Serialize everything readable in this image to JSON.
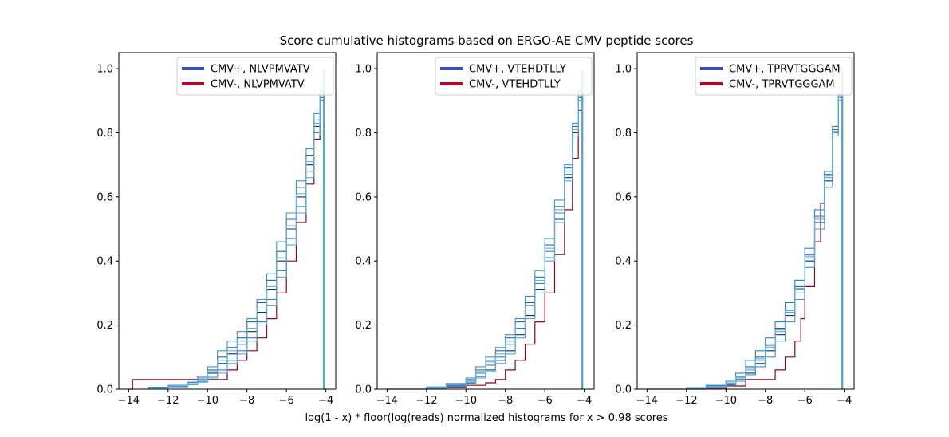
{
  "figure": {
    "title": "Score cumulative histograms based on ERGO-AE CMV peptide scores",
    "xlabel": "log(1 - x) * floor(log(reads) normalized histograms for x > 0.98 scores"
  },
  "colors": {
    "cmv_pos_legend": "#3b4cc0",
    "cmv_neg_legend": "#b40426",
    "cmv_pos_lines": [
      "#08306b",
      "#1f66b1",
      "#2f7fc1",
      "#4292c6",
      "#5aa5d6",
      "#6baed6"
    ],
    "cmv_neg_line": "#7f0b1c"
  },
  "chart_data": [
    {
      "type": "step",
      "panel": "NLVPMVATV",
      "xlim": [
        -14.5,
        -3.5
      ],
      "ylim": [
        0,
        1.05
      ],
      "xticks": [
        -14,
        -12,
        -10,
        -8,
        -6,
        -4
      ],
      "xtick_labels": [
        "−14",
        "−12",
        "−10",
        "−8",
        "−6",
        "−4"
      ],
      "yticks": [
        0,
        0.2,
        0.4,
        0.6,
        0.8,
        1.0
      ],
      "ytick_labels": [
        "0.0",
        "0.2",
        "0.4",
        "0.6",
        "0.8",
        "1.0"
      ],
      "legend": [
        "CMV+, NLVPMVATV",
        "CMV-, NLVPMVATV"
      ],
      "legend_loc": "upper right",
      "series": [
        {
          "group": "CMV-",
          "x": [
            -14,
            -13.8,
            -10.5,
            -9,
            -8.5,
            -8,
            -7.5,
            -7,
            -6.5,
            -6,
            -5.5,
            -5,
            -4.6,
            -4.3,
            -4.1
          ],
          "y": [
            0,
            0.03,
            0.03,
            0.06,
            0.09,
            0.12,
            0.16,
            0.22,
            0.3,
            0.4,
            0.52,
            0.64,
            0.78,
            0.9,
            1.0
          ]
        },
        {
          "group": "CMV+",
          "x": [
            -14,
            -13,
            -12,
            -11,
            -10.5,
            -10,
            -9.5,
            -9,
            -8.5,
            -8,
            -7.5,
            -7,
            -6.5,
            -6,
            -5.5,
            -5,
            -4.6,
            -4.3,
            -4.1
          ],
          "y": [
            0,
            0.005,
            0.01,
            0.02,
            0.03,
            0.05,
            0.08,
            0.11,
            0.14,
            0.18,
            0.24,
            0.31,
            0.4,
            0.5,
            0.6,
            0.7,
            0.82,
            0.92,
            1.0
          ]
        },
        {
          "group": "CMV+",
          "x": [
            -14,
            -13,
            -12,
            -11,
            -10.5,
            -10,
            -9.5,
            -9,
            -8.5,
            -8,
            -7.5,
            -7,
            -6.5,
            -6,
            -5.5,
            -5,
            -4.6,
            -4.3,
            -4.1
          ],
          "y": [
            0,
            0.006,
            0.012,
            0.022,
            0.04,
            0.06,
            0.1,
            0.13,
            0.16,
            0.21,
            0.27,
            0.34,
            0.43,
            0.53,
            0.63,
            0.73,
            0.84,
            0.93,
            1.0
          ]
        },
        {
          "group": "CMV+",
          "x": [
            -14,
            -13,
            -12,
            -11,
            -10.5,
            -10,
            -9.5,
            -9,
            -8.5,
            -8,
            -7.5,
            -7,
            -6.5,
            -6,
            -5.5,
            -5,
            -4.6,
            -4.3,
            -4.1
          ],
          "y": [
            0,
            0.004,
            0.008,
            0.016,
            0.025,
            0.04,
            0.06,
            0.09,
            0.12,
            0.16,
            0.21,
            0.28,
            0.37,
            0.47,
            0.57,
            0.68,
            0.8,
            0.91,
            1.0
          ]
        },
        {
          "group": "CMV+",
          "x": [
            -14,
            -13,
            -12,
            -11,
            -10.5,
            -10,
            -9.5,
            -9,
            -8.5,
            -8,
            -7.5,
            -7,
            -6.5,
            -6,
            -5.5,
            -5,
            -4.6,
            -4.3,
            -4.1
          ],
          "y": [
            0,
            0.005,
            0.01,
            0.02,
            0.035,
            0.07,
            0.12,
            0.15,
            0.18,
            0.22,
            0.28,
            0.36,
            0.46,
            0.55,
            0.65,
            0.75,
            0.86,
            0.94,
            1.0
          ]
        },
        {
          "group": "CMV+",
          "x": [
            -14,
            -13,
            -12,
            -11,
            -10.5,
            -10,
            -9.5,
            -9,
            -8.5,
            -8,
            -7.5,
            -7,
            -6.5,
            -6,
            -5.5,
            -5,
            -4.6,
            -4.3,
            -4.1
          ],
          "y": [
            0,
            0.003,
            0.007,
            0.014,
            0.022,
            0.035,
            0.05,
            0.08,
            0.11,
            0.15,
            0.2,
            0.26,
            0.35,
            0.45,
            0.55,
            0.66,
            0.79,
            0.9,
            1.0
          ]
        },
        {
          "group": "CMV+",
          "x": [
            -14,
            -13,
            -12,
            -11,
            -10.5,
            -10,
            -9.5,
            -9,
            -8.5,
            -8,
            -7.5,
            -7,
            -6.5,
            -6,
            -5.5,
            -5,
            -4.6,
            -4.3,
            -4.1
          ],
          "y": [
            0,
            0.005,
            0.011,
            0.02,
            0.03,
            0.055,
            0.09,
            0.12,
            0.15,
            0.19,
            0.25,
            0.32,
            0.41,
            0.51,
            0.61,
            0.71,
            0.83,
            0.92,
            1.0
          ]
        }
      ]
    },
    {
      "type": "step",
      "panel": "VTEHDTLLY",
      "xlim": [
        -14.5,
        -3.5
      ],
      "ylim": [
        0,
        1.05
      ],
      "xticks": [
        -14,
        -12,
        -10,
        -8,
        -6,
        -4
      ],
      "xtick_labels": [
        "−14",
        "−12",
        "−10",
        "−8",
        "−6",
        "−4"
      ],
      "yticks": [
        0,
        0.2,
        0.4,
        0.6,
        0.8,
        1.0
      ],
      "ytick_labels": [
        "0.0",
        "0.2",
        "0.4",
        "0.6",
        "0.8",
        "1.0"
      ],
      "legend": [
        "CMV+, VTEHDTLLY",
        "CMV-, VTEHDTLLY"
      ],
      "legend_loc": "upper right",
      "series": [
        {
          "group": "CMV-",
          "x": [
            -14,
            -12,
            -11,
            -10,
            -9,
            -8.5,
            -8,
            -7.5,
            -7,
            -6.5,
            -6,
            -5.5,
            -5,
            -4.6,
            -4.3,
            -4.1
          ],
          "y": [
            0,
            0.003,
            0.006,
            0.012,
            0.02,
            0.03,
            0.06,
            0.09,
            0.14,
            0.21,
            0.3,
            0.42,
            0.56,
            0.72,
            0.87,
            1.0
          ]
        },
        {
          "group": "CMV+",
          "x": [
            -14,
            -12,
            -11,
            -10,
            -9.5,
            -9,
            -8.5,
            -8,
            -7.5,
            -7,
            -6.5,
            -6,
            -5.5,
            -5,
            -4.6,
            -4.3,
            -4.1
          ],
          "y": [
            0,
            0.004,
            0.01,
            0.02,
            0.04,
            0.06,
            0.09,
            0.12,
            0.17,
            0.23,
            0.31,
            0.41,
            0.53,
            0.66,
            0.8,
            0.91,
            1.0
          ]
        },
        {
          "group": "CMV+",
          "x": [
            -14,
            -12,
            -11,
            -10,
            -9.5,
            -9,
            -8.5,
            -8,
            -7.5,
            -7,
            -6.5,
            -6,
            -5.5,
            -5,
            -4.6,
            -4.3,
            -4.1
          ],
          "y": [
            0,
            0.006,
            0.015,
            0.03,
            0.06,
            0.09,
            0.12,
            0.16,
            0.21,
            0.27,
            0.35,
            0.45,
            0.57,
            0.69,
            0.82,
            0.92,
            1.0
          ]
        },
        {
          "group": "CMV+",
          "x": [
            -14,
            -12,
            -11,
            -10,
            -9.5,
            -9,
            -8.5,
            -8,
            -7.5,
            -7,
            -6.5,
            -6,
            -5.5,
            -5,
            -4.6,
            -4.3,
            -4.1
          ],
          "y": [
            0,
            0.005,
            0.012,
            0.025,
            0.05,
            0.075,
            0.1,
            0.14,
            0.19,
            0.25,
            0.33,
            0.43,
            0.55,
            0.67,
            0.81,
            0.91,
            1.0
          ]
        },
        {
          "group": "CMV+",
          "x": [
            -14,
            -12,
            -11,
            -10,
            -9.5,
            -9,
            -8.5,
            -8,
            -7.5,
            -7,
            -6.5,
            -6,
            -5.5,
            -5,
            -4.6,
            -4.3,
            -4.1
          ],
          "y": [
            0,
            0.007,
            0.018,
            0.035,
            0.07,
            0.1,
            0.13,
            0.17,
            0.22,
            0.29,
            0.37,
            0.47,
            0.59,
            0.7,
            0.83,
            0.93,
            1.0
          ]
        },
        {
          "group": "CMV+",
          "x": [
            -14,
            -12,
            -11,
            -10,
            -9.5,
            -9,
            -8.5,
            -8,
            -7.5,
            -7,
            -6.5,
            -6,
            -5.5,
            -5,
            -4.6,
            -4.3,
            -4.1
          ],
          "y": [
            0,
            0.003,
            0.008,
            0.018,
            0.035,
            0.055,
            0.08,
            0.11,
            0.16,
            0.22,
            0.3,
            0.4,
            0.52,
            0.65,
            0.79,
            0.9,
            1.0
          ]
        },
        {
          "group": "CMV+",
          "x": [
            -14,
            -12,
            -11,
            -10,
            -9.5,
            -9,
            -8.5,
            -8,
            -7.5,
            -7,
            -6.5,
            -6,
            -5.5,
            -5,
            -4.6,
            -4.3,
            -4.1
          ],
          "y": [
            0,
            0.005,
            0.013,
            0.028,
            0.055,
            0.085,
            0.11,
            0.15,
            0.2,
            0.26,
            0.34,
            0.44,
            0.56,
            0.68,
            0.81,
            0.92,
            1.0
          ]
        }
      ]
    },
    {
      "type": "step",
      "panel": "TPRVTGGGAM",
      "xlim": [
        -14.5,
        -3.5
      ],
      "ylim": [
        0,
        1.05
      ],
      "xticks": [
        -14,
        -12,
        -10,
        -8,
        -6,
        -4
      ],
      "xtick_labels": [
        "−14",
        "−12",
        "−10",
        "−8",
        "−6",
        "−4"
      ],
      "yticks": [
        0,
        0.2,
        0.4,
        0.6,
        0.8,
        1.0
      ],
      "ytick_labels": [
        "0.0",
        "0.2",
        "0.4",
        "0.6",
        "0.8",
        "1.0"
      ],
      "legend": [
        "CMV+, TPRVTGGGAM",
        "CMV-, TPRVTGGGAM"
      ],
      "legend_loc": "upper right",
      "series": [
        {
          "group": "CMV-",
          "x": [
            -14,
            -11,
            -10,
            -9,
            -8,
            -7.5,
            -7,
            -6.5,
            -6.2,
            -6,
            -5.5,
            -5.2,
            -5,
            -4.6,
            -4.3,
            -4.1
          ],
          "y": [
            0,
            0.003,
            0.01,
            0.03,
            0.03,
            0.06,
            0.1,
            0.15,
            0.22,
            0.32,
            0.46,
            0.58,
            0.68,
            0.8,
            0.92,
            1.0
          ]
        },
        {
          "group": "CMV+",
          "x": [
            -14,
            -12,
            -11,
            -10,
            -9.5,
            -9,
            -8.5,
            -8,
            -7.5,
            -7,
            -6.5,
            -6,
            -5.5,
            -5,
            -4.6,
            -4.3,
            -4.1
          ],
          "y": [
            0,
            0.003,
            0.007,
            0.015,
            0.03,
            0.05,
            0.08,
            0.12,
            0.17,
            0.23,
            0.3,
            0.4,
            0.52,
            0.65,
            0.8,
            0.91,
            1.0
          ]
        },
        {
          "group": "CMV+",
          "x": [
            -14,
            -12,
            -11,
            -10,
            -9.5,
            -9,
            -8.5,
            -8,
            -7.5,
            -7,
            -6.5,
            -6,
            -5.5,
            -5,
            -4.6,
            -4.3,
            -4.1
          ],
          "y": [
            0,
            0.004,
            0.01,
            0.02,
            0.04,
            0.07,
            0.1,
            0.14,
            0.19,
            0.25,
            0.32,
            0.42,
            0.54,
            0.67,
            0.81,
            0.92,
            1.0
          ]
        },
        {
          "group": "CMV+",
          "x": [
            -14,
            -12,
            -11,
            -10,
            -9.5,
            -9,
            -8.5,
            -8,
            -7.5,
            -7,
            -6.5,
            -6,
            -5.5,
            -5,
            -4.6,
            -4.3,
            -4.1
          ],
          "y": [
            0,
            0.005,
            0.012,
            0.025,
            0.05,
            0.09,
            0.12,
            0.16,
            0.21,
            0.27,
            0.34,
            0.44,
            0.56,
            0.68,
            0.82,
            0.92,
            1.0
          ]
        },
        {
          "group": "CMV+",
          "x": [
            -14,
            -12,
            -11,
            -10,
            -9.5,
            -9,
            -8.5,
            -8,
            -7.5,
            -7,
            -6.5,
            -6,
            -5.5,
            -5,
            -4.6,
            -4.3,
            -4.1
          ],
          "y": [
            0,
            0.002,
            0.006,
            0.012,
            0.025,
            0.045,
            0.07,
            0.1,
            0.15,
            0.21,
            0.28,
            0.38,
            0.5,
            0.63,
            0.79,
            0.9,
            1.0
          ]
        },
        {
          "group": "CMV+",
          "x": [
            -14,
            -12,
            -11,
            -10,
            -9.5,
            -9,
            -8.5,
            -8,
            -7.5,
            -7,
            -6.5,
            -6,
            -5.5,
            -5,
            -4.6,
            -4.3,
            -4.1
          ],
          "y": [
            0,
            0.003,
            0.008,
            0.018,
            0.035,
            0.06,
            0.09,
            0.13,
            0.18,
            0.24,
            0.31,
            0.41,
            0.53,
            0.66,
            0.8,
            0.91,
            1.0
          ]
        },
        {
          "group": "CMV+",
          "x": [
            -14,
            -12,
            -11,
            -10,
            -9.5,
            -9,
            -8.5,
            -8,
            -7.5,
            -7,
            -6.5,
            -6,
            -5.5,
            -5,
            -4.6,
            -4.3,
            -4.1
          ],
          "y": [
            0,
            0.004,
            0.009,
            0.02,
            0.038,
            0.065,
            0.095,
            0.135,
            0.185,
            0.245,
            0.315,
            0.415,
            0.535,
            0.665,
            0.805,
            0.915,
            1.0
          ]
        }
      ]
    }
  ]
}
